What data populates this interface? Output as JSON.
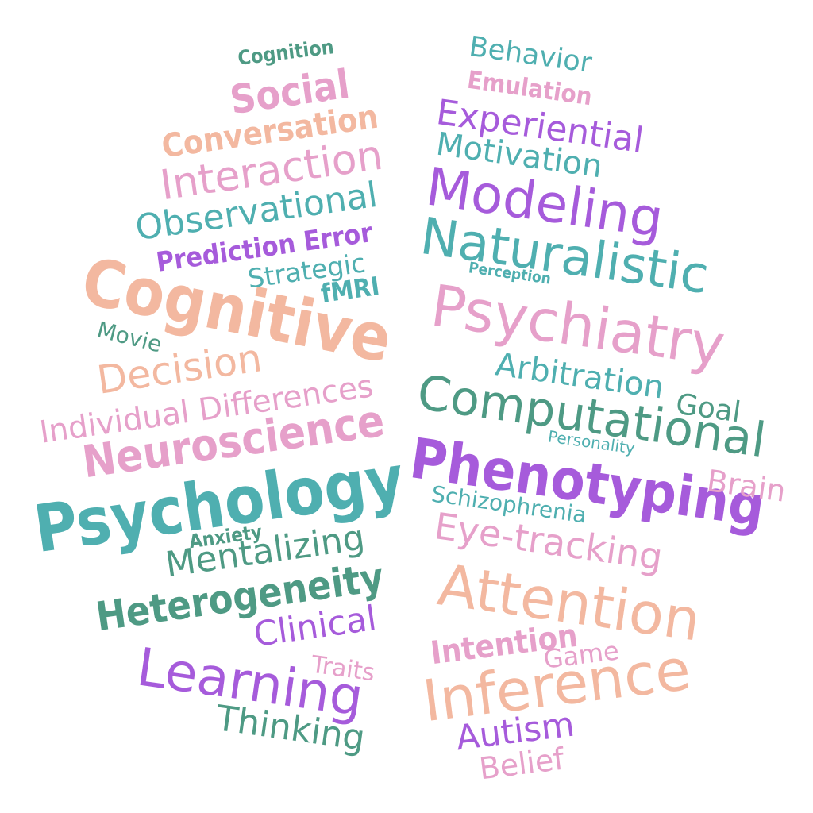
{
  "colors": {
    "teal": "#4FAFB0",
    "green": "#4E9A84",
    "purple": "#A65BDB",
    "pink": "#E6A0CA",
    "peach": "#F3B8A0",
    "background": "#FFFFFF"
  },
  "words": {
    "cognition": "Cognition",
    "social": "Social",
    "conversation": "Conversation",
    "interaction": "Interaction",
    "observational": "Observational",
    "prediction_error": "Prediction Error",
    "strategic": "Strategic",
    "fmri": "fMRI",
    "cognitive": "Cognitive",
    "movie": "Movie",
    "decision": "Decision",
    "individual_differences": "Individual Differences",
    "neuroscience": "Neuroscience",
    "psychology": "Psychology",
    "anxiety": "Anxiety",
    "mentalizing": "Mentalizing",
    "heterogeneity": "Heterogeneity",
    "clinical": "Clinical",
    "learning": "Learning",
    "traits": "Traits",
    "thinking": "Thinking",
    "behavior": "Behavior",
    "emulation": "Emulation",
    "experiential": "Experiential",
    "motivation": "Motivation",
    "modeling": "Modeling",
    "naturalistic": "Naturalistic",
    "perception": "Perception",
    "psychiatry": "Psychiatry",
    "arbitration": "Arbitration",
    "goal": "Goal",
    "computational": "Computational",
    "personality": "Personality",
    "phenotyping": "Phenotyping",
    "brain": "Brain",
    "schizophrenia": "Schizophrenia",
    "eye_tracking": "Eye-tracking",
    "attention": "Attention",
    "intention": "Intention",
    "game": "Game",
    "inference": "Inference",
    "autism": "Autism",
    "belief": "Belief"
  }
}
